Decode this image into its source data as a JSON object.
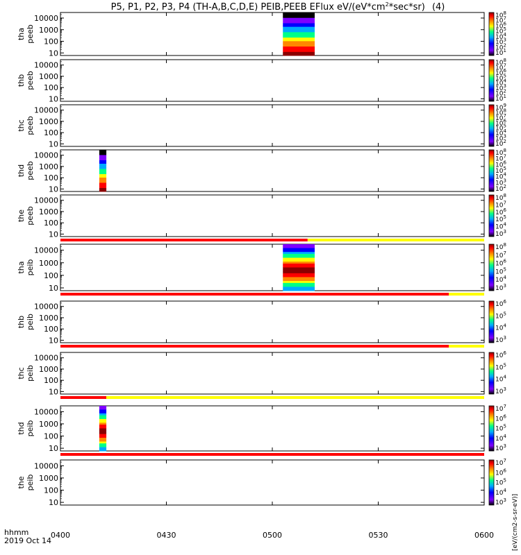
{
  "chart_data": {
    "type": "heatmap",
    "title": "P5, P1, P2, P3, P4 (TH-A,B,C,D,E) PEIB,PEEB EFlux eV/(eV*cm",
    "title_sup": "2",
    "title_end": "*sec*sr)",
    "title_tail": "(4)",
    "xaxis": {
      "start_minutes": 0,
      "end_minutes": 120,
      "ticks": [
        {
          "label": "0400",
          "minutes": 0
        },
        {
          "label": "0430",
          "minutes": 30
        },
        {
          "label": "0500",
          "minutes": 60
        },
        {
          "label": "0530",
          "minutes": 90
        },
        {
          "label": "0600",
          "minutes": 120
        }
      ]
    },
    "yaxis": {
      "scale": "log",
      "range": [
        6,
        30000
      ],
      "ticks": [
        {
          "label": "10",
          "value": 10
        },
        {
          "label": "100",
          "value": 100
        },
        {
          "label": "1000",
          "value": 1000
        },
        {
          "label": "10000",
          "value": 10000
        }
      ]
    },
    "bottom_labels": {
      "left1": "hhmm",
      "left2": "2019 Oct 14"
    },
    "colorbar_label": "[eV/(cm2-s-sr-eV)]",
    "panels": [
      {
        "probe": "tha",
        "instr": "peeb",
        "blocks": [
          {
            "start": 63,
            "end": 72,
            "min": 6,
            "max": 30000
          }
        ],
        "cbar": [
          "10",
          "10",
          "10",
          "10",
          "10",
          "10",
          "10",
          "10"
        ],
        "cbar_exp": [
          "8",
          "7",
          "6",
          "5",
          "4",
          "3",
          "2",
          "1"
        ],
        "status": null
      },
      {
        "probe": "thb",
        "instr": "peeb",
        "blocks": [],
        "cbar": [
          "10",
          "10",
          "10",
          "10",
          "10",
          "10",
          "10",
          "10"
        ],
        "cbar_exp": [
          "8",
          "7",
          "6",
          "5",
          "4",
          "3",
          "2",
          "1"
        ],
        "status": null
      },
      {
        "probe": "thc",
        "instr": "peeb",
        "blocks": [],
        "cbar": [
          "10",
          "10",
          "10",
          "10",
          "10",
          "10",
          "10",
          "10"
        ],
        "cbar_exp": [
          "9",
          "8",
          "7",
          "6",
          "5",
          "4",
          "3",
          "2"
        ],
        "status": null
      },
      {
        "probe": "thd",
        "instr": "peeb",
        "blocks": [
          {
            "start": 11,
            "end": 13,
            "min": 6,
            "max": 30000
          }
        ],
        "cbar": [
          "10",
          "10",
          "10",
          "10",
          "10",
          "10",
          "10"
        ],
        "cbar_exp": [
          "8",
          "7",
          "6",
          "5",
          "4",
          "3",
          "2"
        ],
        "status": null
      },
      {
        "probe": "the",
        "instr": "peeb",
        "blocks": [],
        "cbar": [
          "10",
          "10",
          "10",
          "10",
          "10",
          "10"
        ],
        "cbar_exp": [
          "8",
          "7",
          "6",
          "5",
          "4",
          "3"
        ],
        "status": {
          "red_end": 70,
          "yellow_end": 120
        }
      },
      {
        "probe": "tha",
        "instr": "peib",
        "blocks": [
          {
            "start": 63,
            "end": 72,
            "min": 6,
            "max": 30000
          }
        ],
        "cbar": [
          "10",
          "10",
          "10",
          "10",
          "10",
          "10"
        ],
        "cbar_exp": [
          "8",
          "7",
          "6",
          "5",
          "4",
          "3"
        ],
        "status": {
          "red_end": 110,
          "yellow_end": 120
        }
      },
      {
        "probe": "thb",
        "instr": "peib",
        "blocks": [],
        "cbar": [
          "10",
          "10",
          "10",
          "10"
        ],
        "cbar_exp": [
          "6",
          "5",
          "4",
          "3"
        ],
        "status": {
          "red_end": 110,
          "yellow_end": 120
        }
      },
      {
        "probe": "thc",
        "instr": "peib",
        "blocks": [],
        "cbar": [
          "10",
          "10",
          "10",
          "10"
        ],
        "cbar_exp": [
          "6",
          "5",
          "4",
          "3"
        ],
        "status": {
          "red_end": 13,
          "yellow_end": 120
        }
      },
      {
        "probe": "thd",
        "instr": "peib",
        "blocks": [
          {
            "start": 11,
            "end": 13,
            "min": 6,
            "max": 30000
          }
        ],
        "cbar": [
          "10",
          "10",
          "10",
          "10",
          "10"
        ],
        "cbar_exp": [
          "7",
          "6",
          "5",
          "4",
          "3"
        ],
        "status": {
          "red_end": 120,
          "yellow_end": 120
        }
      },
      {
        "probe": "the",
        "instr": "peib",
        "blocks": [],
        "cbar": [
          "10",
          "10",
          "10",
          "10",
          "10"
        ],
        "cbar_exp": [
          "7",
          "6",
          "5",
          "4",
          "3"
        ],
        "status": null
      }
    ],
    "colors": {
      "red": "#ff0000",
      "yellow": "#ffff00",
      "bar_scale": [
        "#ffffff",
        "#000000",
        "#7f00ff",
        "#0000ff",
        "#00aaff",
        "#00ff88",
        "#ffff00",
        "#ff8800",
        "#ff0000",
        "#8b0000"
      ]
    }
  }
}
